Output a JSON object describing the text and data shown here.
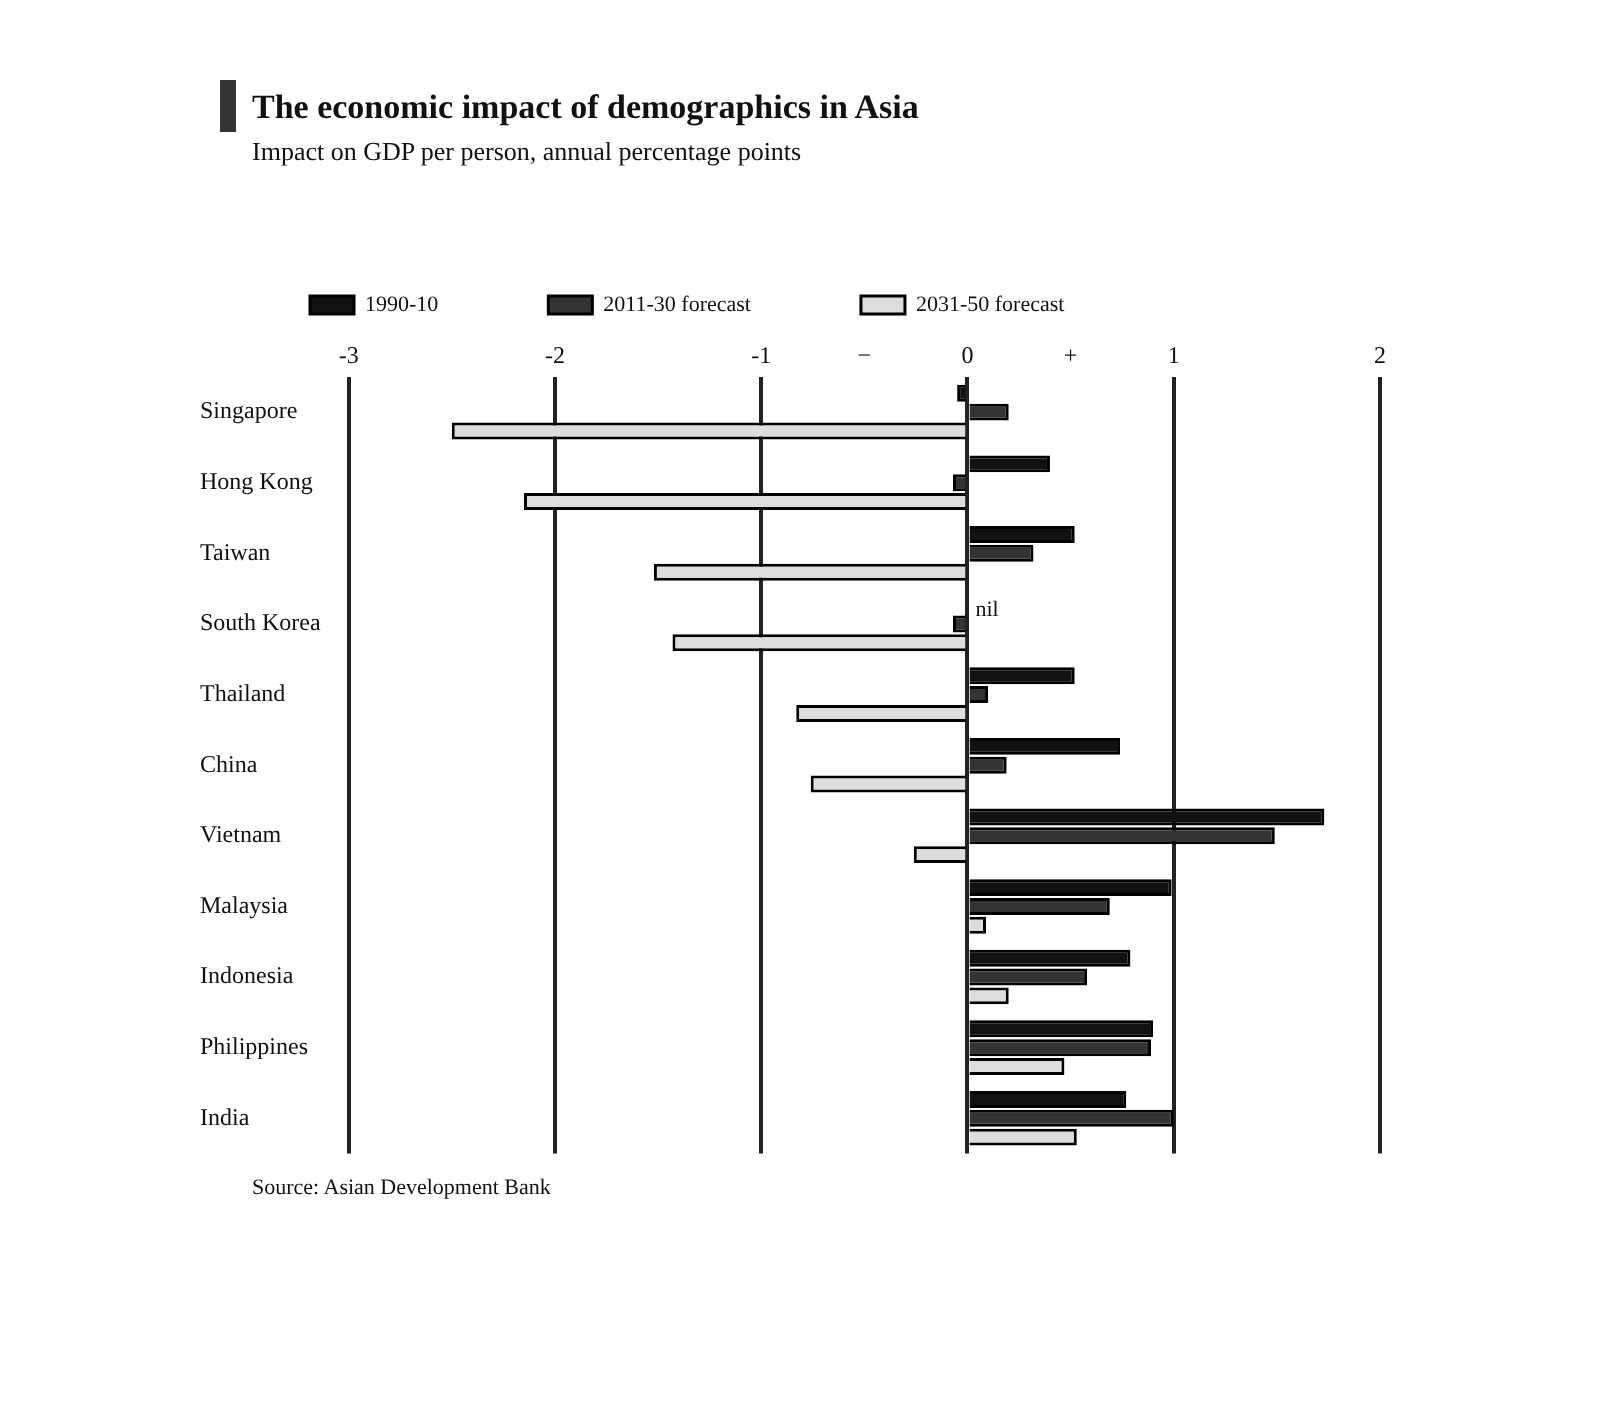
{
  "chart_data": {
    "type": "bar",
    "orientation": "horizontal",
    "title": "The economic impact of demographics in Asia",
    "subtitle": "Impact on GDP per person, annual percentage points",
    "categories": [
      "Singapore",
      "Hong Kong",
      "Taiwan",
      "South Korea",
      "Thailand",
      "China",
      "Vietnam",
      "Malaysia",
      "Indonesia",
      "Philippines",
      "India"
    ],
    "series": [
      {
        "name": "1990-10",
        "color": "#111111",
        "values": [
          -0.05,
          0.4,
          0.52,
          0,
          0.52,
          0.74,
          1.73,
          0.99,
          0.79,
          0.9,
          0.77
        ]
      },
      {
        "name": "2011-30 forecast",
        "color": "#333333",
        "values": [
          0.2,
          -0.07,
          0.32,
          -0.07,
          0.1,
          0.19,
          1.49,
          0.69,
          0.58,
          0.89,
          1.0
        ]
      },
      {
        "name": "2031-50 forecast",
        "color": "#dddddd",
        "values": [
          -2.5,
          -2.15,
          -1.52,
          -1.43,
          -0.83,
          -0.76,
          -0.26,
          0.09,
          0.2,
          0.47,
          0.53
        ]
      }
    ],
    "xlim": [
      -3,
      2
    ],
    "xticks": [
      -3,
      -2,
      -1,
      {
        "value": -0.5,
        "label": "−"
      },
      0,
      {
        "value": 0.5,
        "label": "+"
      },
      1,
      2
    ],
    "grid": "x",
    "legend": "top left",
    "annotations": [
      {
        "text": "nil",
        "x": 0,
        "y": "South Korea"
      },
      "Source: Asian Development Bank"
    ]
  }
}
